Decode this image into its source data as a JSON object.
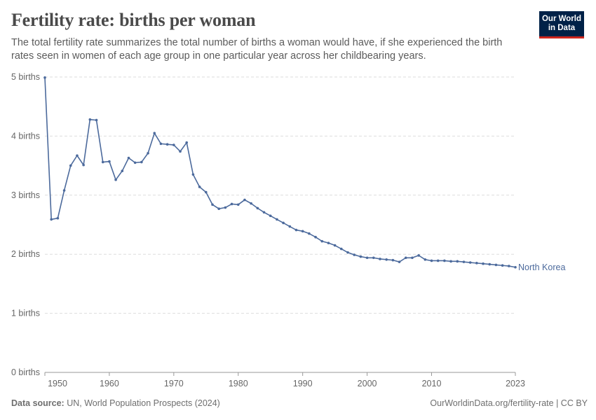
{
  "header": {
    "title": "Fertility rate: births per woman",
    "subtitle": "The total fertility rate summarizes the total number of births a woman would have, if she experienced the birth rates seen in women of each age group in one particular year across her childbearing years.",
    "logo_line1": "Our World",
    "logo_line2": "in Data"
  },
  "footer": {
    "source_label": "Data source:",
    "source_text": "UN, World Population Prospects (2024)",
    "link": "OurWorldinData.org/fertility-rate | CC BY"
  },
  "colors": {
    "series": "#4c6a9c",
    "grid": "#dddddd",
    "text": "#666666",
    "brand": "#002147",
    "brand_accent": "#ce261e"
  },
  "chart_data": {
    "type": "line",
    "title": "Fertility rate: births per woman",
    "xlim": [
      1950,
      2023
    ],
    "ylim": [
      0,
      5
    ],
    "y_ticks": [
      0,
      1,
      2,
      3,
      4,
      5
    ],
    "y_tick_labels": [
      "0 births",
      "1 births",
      "2 births",
      "3 births",
      "4 births",
      "5 births"
    ],
    "x_ticks": [
      1950,
      1960,
      1970,
      1980,
      1990,
      2000,
      2010,
      2023
    ],
    "x_tick_labels": [
      "1950",
      "1960",
      "1970",
      "1980",
      "1990",
      "2000",
      "2010",
      "2023"
    ],
    "grid": "horizontal dashed",
    "series": [
      {
        "name": "North Korea",
        "x": [
          1950,
          1951,
          1952,
          1953,
          1954,
          1955,
          1956,
          1957,
          1958,
          1959,
          1960,
          1961,
          1962,
          1963,
          1964,
          1965,
          1966,
          1967,
          1968,
          1969,
          1970,
          1971,
          1972,
          1973,
          1974,
          1975,
          1976,
          1977,
          1978,
          1979,
          1980,
          1981,
          1982,
          1983,
          1984,
          1985,
          1986,
          1987,
          1988,
          1989,
          1990,
          1991,
          1992,
          1993,
          1994,
          1995,
          1996,
          1997,
          1998,
          1999,
          2000,
          2001,
          2002,
          2003,
          2004,
          2005,
          2006,
          2007,
          2008,
          2009,
          2010,
          2011,
          2012,
          2013,
          2014,
          2015,
          2016,
          2017,
          2018,
          2019,
          2020,
          2021,
          2022,
          2023
        ],
        "values": [
          4.99,
          2.59,
          2.61,
          3.08,
          3.5,
          3.67,
          3.51,
          4.28,
          4.27,
          3.56,
          3.57,
          3.26,
          3.41,
          3.63,
          3.55,
          3.56,
          3.71,
          4.05,
          3.87,
          3.86,
          3.85,
          3.74,
          3.89,
          3.35,
          3.14,
          3.05,
          2.84,
          2.77,
          2.79,
          2.85,
          2.84,
          2.92,
          2.86,
          2.78,
          2.71,
          2.65,
          2.59,
          2.53,
          2.47,
          2.41,
          2.39,
          2.35,
          2.29,
          2.22,
          2.19,
          2.15,
          2.09,
          2.03,
          1.99,
          1.96,
          1.94,
          1.94,
          1.92,
          1.91,
          1.9,
          1.87,
          1.94,
          1.94,
          1.98,
          1.91,
          1.89,
          1.89,
          1.89,
          1.88,
          1.88,
          1.87,
          1.86,
          1.85,
          1.84,
          1.83,
          1.82,
          1.81,
          1.8,
          1.78
        ]
      }
    ]
  }
}
